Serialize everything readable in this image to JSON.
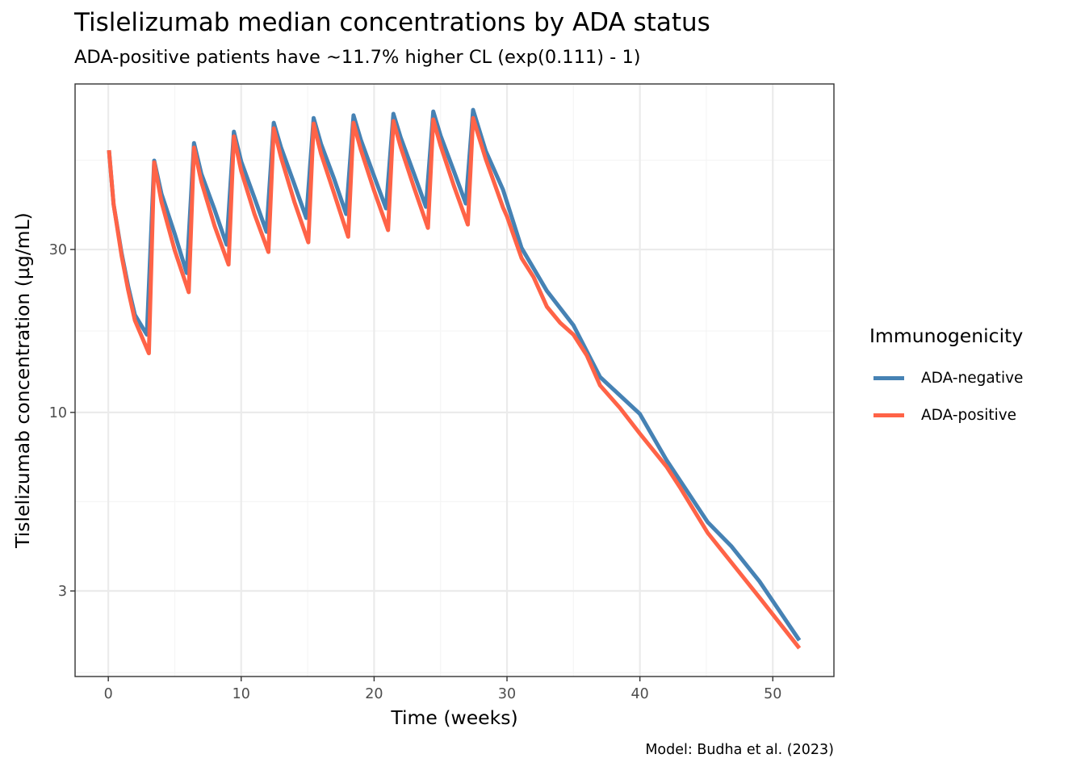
{
  "chart_data": {
    "type": "line",
    "title": "Tislelizumab median concentrations by ADA status",
    "subtitle": "ADA-positive patients have ~11.7% higher CL (exp(0.111) - 1)",
    "caption": "Model: Budha et al. (2023)",
    "xlabel": "Time (weeks)",
    "ylabel": "Tislelizumab concentration (µg/mL)",
    "xlim": [
      -2.5,
      54.6
    ],
    "ylim": [
      1.685,
      91.6
    ],
    "yscale": "log10",
    "xticks": [
      0,
      10,
      20,
      30,
      40,
      50
    ],
    "xtick_labels": [
      "0",
      "10",
      "20",
      "30",
      "40",
      "50"
    ],
    "xminor": [
      5,
      15,
      25,
      35,
      45
    ],
    "yticks": [
      3,
      10,
      30
    ],
    "ytick_labels": [
      "3",
      "10",
      "30"
    ],
    "yminor": [
      1.73,
      5.48,
      17.32,
      54.77
    ],
    "grid": true,
    "legend": {
      "title": "Immunogenicity",
      "position": "right"
    },
    "series": [
      {
        "name": "ADA-negative",
        "color": "#4682B4",
        "x": [
          0.05,
          0.4,
          1.0,
          1.5,
          2.0,
          2.9,
          3.45,
          4.0,
          5.0,
          5.9,
          6.45,
          7.0,
          8.0,
          8.9,
          9.45,
          10.0,
          11.0,
          11.9,
          12.45,
          13.0,
          14.0,
          14.9,
          15.45,
          16.0,
          17.0,
          17.9,
          18.45,
          19.0,
          20.0,
          20.9,
          21.45,
          22.0,
          23.0,
          23.9,
          24.45,
          25.0,
          26.0,
          26.9,
          27.45,
          28.4,
          29.7,
          31.1,
          33.0,
          35.0,
          37.0,
          40.0,
          42.0,
          45.1,
          46.9,
          49.0,
          52.0
        ],
        "y": [
          58.6,
          40.7,
          29.3,
          23.4,
          19.3,
          16.9,
          54.6,
          43.7,
          33.3,
          25.6,
          61.5,
          50.0,
          39.2,
          31.0,
          66.4,
          54.3,
          42.5,
          33.8,
          70.5,
          59.6,
          46.6,
          37.1,
          72.8,
          61.2,
          48.2,
          38.1,
          74.1,
          62.9,
          49.2,
          39.6,
          74.9,
          63.9,
          50.0,
          40.0,
          76.1,
          64.7,
          50.9,
          40.9,
          76.9,
          58.3,
          44.9,
          30.3,
          22.7,
          18.0,
          12.7,
          9.9,
          7.25,
          4.77,
          4.05,
          3.2,
          2.15
        ]
      },
      {
        "name": "ADA-positive",
        "color": "#FF6347",
        "x": [
          0.05,
          0.4,
          1.0,
          1.5,
          2.0,
          3.05,
          3.45,
          4.0,
          5.0,
          6.05,
          6.45,
          7.0,
          8.0,
          9.05,
          9.45,
          10.0,
          11.0,
          12.05,
          12.45,
          13.0,
          14.0,
          15.05,
          15.45,
          16.0,
          17.0,
          18.05,
          18.45,
          19.0,
          20.0,
          21.05,
          21.45,
          22.0,
          23.0,
          24.05,
          24.45,
          25.0,
          26.0,
          27.05,
          27.45,
          28.4,
          29.7,
          30.0,
          31.1,
          32.0,
          33.0,
          34.0,
          35.0,
          36.0,
          37.0,
          38.5,
          40.0,
          42.0,
          43.0,
          45.1,
          46.9,
          49.0,
          52.0
        ],
        "y": [
          58.6,
          40.7,
          28.8,
          22.8,
          18.6,
          14.9,
          54.0,
          41.4,
          29.8,
          22.5,
          59.6,
          47.4,
          35.1,
          27.1,
          64.3,
          50.9,
          38.1,
          29.5,
          67.9,
          55.8,
          41.4,
          31.5,
          70.1,
          57.3,
          43.7,
          32.7,
          70.5,
          58.9,
          44.6,
          34.2,
          71.3,
          59.9,
          45.6,
          34.7,
          72.1,
          60.5,
          46.1,
          35.5,
          72.8,
          55.2,
          39.8,
          37.5,
          28.3,
          24.9,
          20.4,
          18.3,
          16.9,
          14.7,
          12.0,
          10.3,
          8.67,
          6.94,
          6.05,
          4.44,
          3.63,
          2.87,
          2.04
        ]
      }
    ]
  },
  "colors": {
    "panel_border": "#333333",
    "grid_major": "#EBEBEB",
    "grid_minor": "#F5F5F5",
    "tick_text": "#4D4D4D"
  }
}
